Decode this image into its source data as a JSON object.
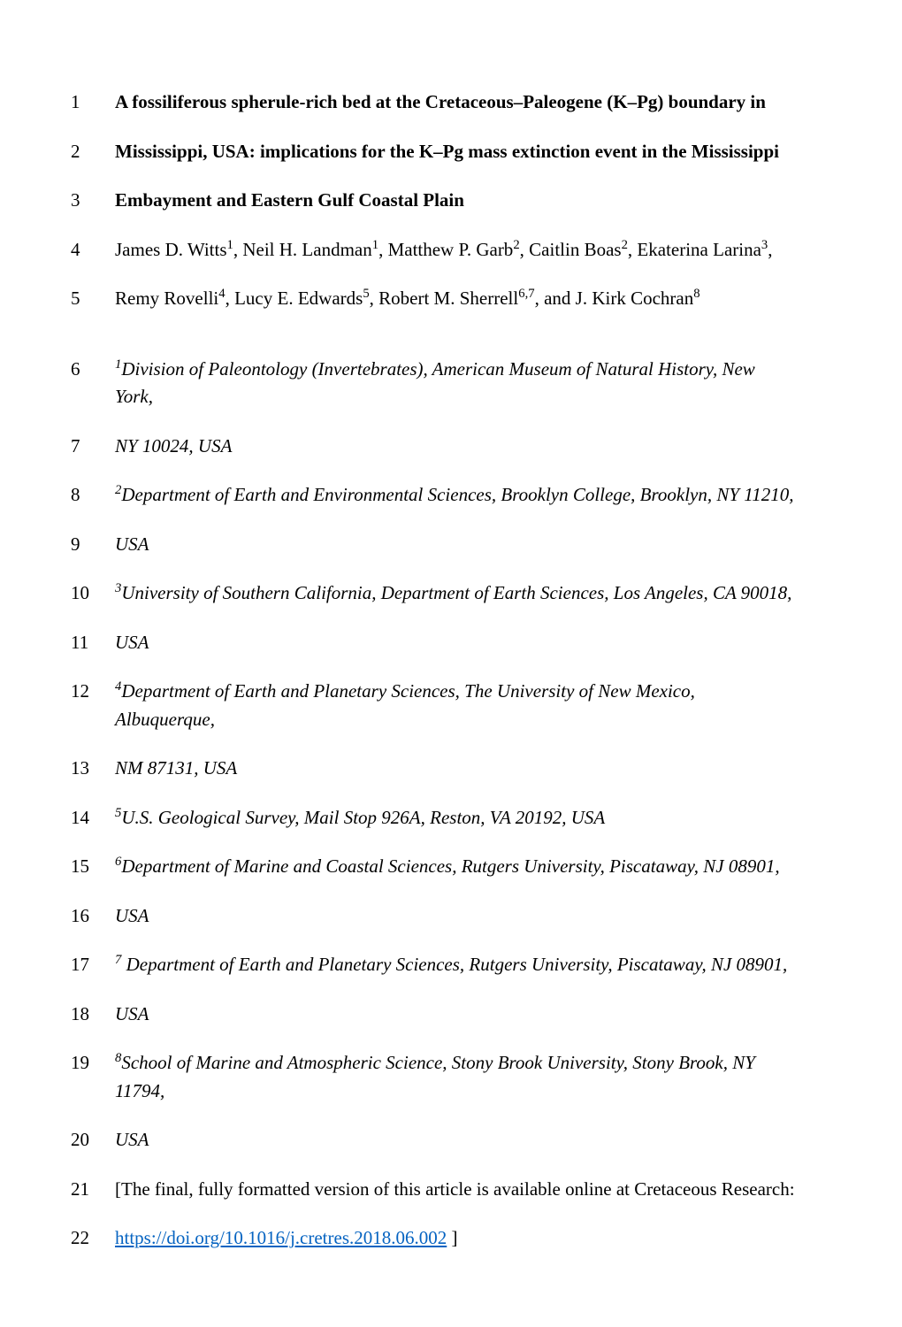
{
  "lines": [
    {
      "num": "1",
      "html": "<span class='bold'>A fossiliferous spherule-rich bed at the Cretaceous–Paleogene (K–Pg) boundary in</span>"
    },
    {
      "num": "2",
      "html": "<span class='bold'>Mississippi, USA: implications for the K–Pg mass extinction event in the Mississippi</span>"
    },
    {
      "num": "3",
      "html": "<span class='bold'>Embayment and Eastern Gulf Coastal Plain</span>"
    },
    {
      "num": "4",
      "html": "James D. Witts<sup>1</sup>, Neil H. Landman<sup>1</sup>, Matthew P. Garb<sup>2</sup>, Caitlin Boas<sup>2</sup>, Ekaterina Larina<sup>3</sup>,"
    },
    {
      "num": "5",
      "html": "Remy Rovelli<sup>4</sup>, Lucy E. Edwards<sup>5</sup>, Robert M. Sherrell<sup>6,7</sup>, and J. Kirk Cochran<sup>8</sup>"
    },
    {
      "num": "6",
      "html": "<span class='italic'><sup>1</sup>Division of Paleontology (Invertebrates), American Museum of Natural History, New York,</span>"
    },
    {
      "num": "7",
      "html": "<span class='italic'>NY 10024, USA</span>"
    },
    {
      "num": "8",
      "html": "<span class='italic'><sup>2</sup>Department of Earth and Environmental Sciences, Brooklyn College, Brooklyn, NY 11210,</span>"
    },
    {
      "num": "9",
      "html": "<span class='italic'>USA</span>"
    },
    {
      "num": "10",
      "html": "<span class='italic'><sup>3</sup>University of Southern California, Department of Earth Sciences, Los Angeles, CA 90018,</span>"
    },
    {
      "num": "11",
      "html": "<span class='italic'>USA</span>"
    },
    {
      "num": "12",
      "html": "<span class='italic'><sup>4</sup>Department of Earth and Planetary Sciences, The University of New Mexico, Albuquerque,</span>"
    },
    {
      "num": "13",
      "html": "<span class='italic'>NM 87131, USA</span>"
    },
    {
      "num": "14",
      "html": "<span class='italic'><sup>5</sup>U.S. Geological Survey, Mail Stop 926A, Reston, VA 20192, USA</span>"
    },
    {
      "num": "15",
      "html": "<span class='italic'><sup>6</sup>Department of Marine and Coastal Sciences, Rutgers University, Piscataway, NJ 08901,</span>"
    },
    {
      "num": "16",
      "html": "<span class='italic'>USA</span>"
    },
    {
      "num": "17",
      "html": "<span class='italic'><sup>7</sup> Department of Earth and Planetary Sciences, Rutgers University, Piscataway, NJ 08901,</span>"
    },
    {
      "num": "18",
      "html": "<span class='italic'>USA</span>"
    },
    {
      "num": "19",
      "html": "<span class='italic'><sup>8</sup>School of Marine and Atmospheric Science, Stony Brook University, Stony Brook, NY 11794,</span>"
    },
    {
      "num": "20",
      "html": "<span class='italic'>USA</span>"
    },
    {
      "num": "21",
      "html": "[The final, fully formatted version of this article is available online at Cretaceous Research:"
    },
    {
      "num": "22",
      "html": "<a class='link' href='#'>https://doi.org/10.1016/j.cretres.2018.06.002</a> ]"
    }
  ],
  "gap_after": [
    "5"
  ]
}
